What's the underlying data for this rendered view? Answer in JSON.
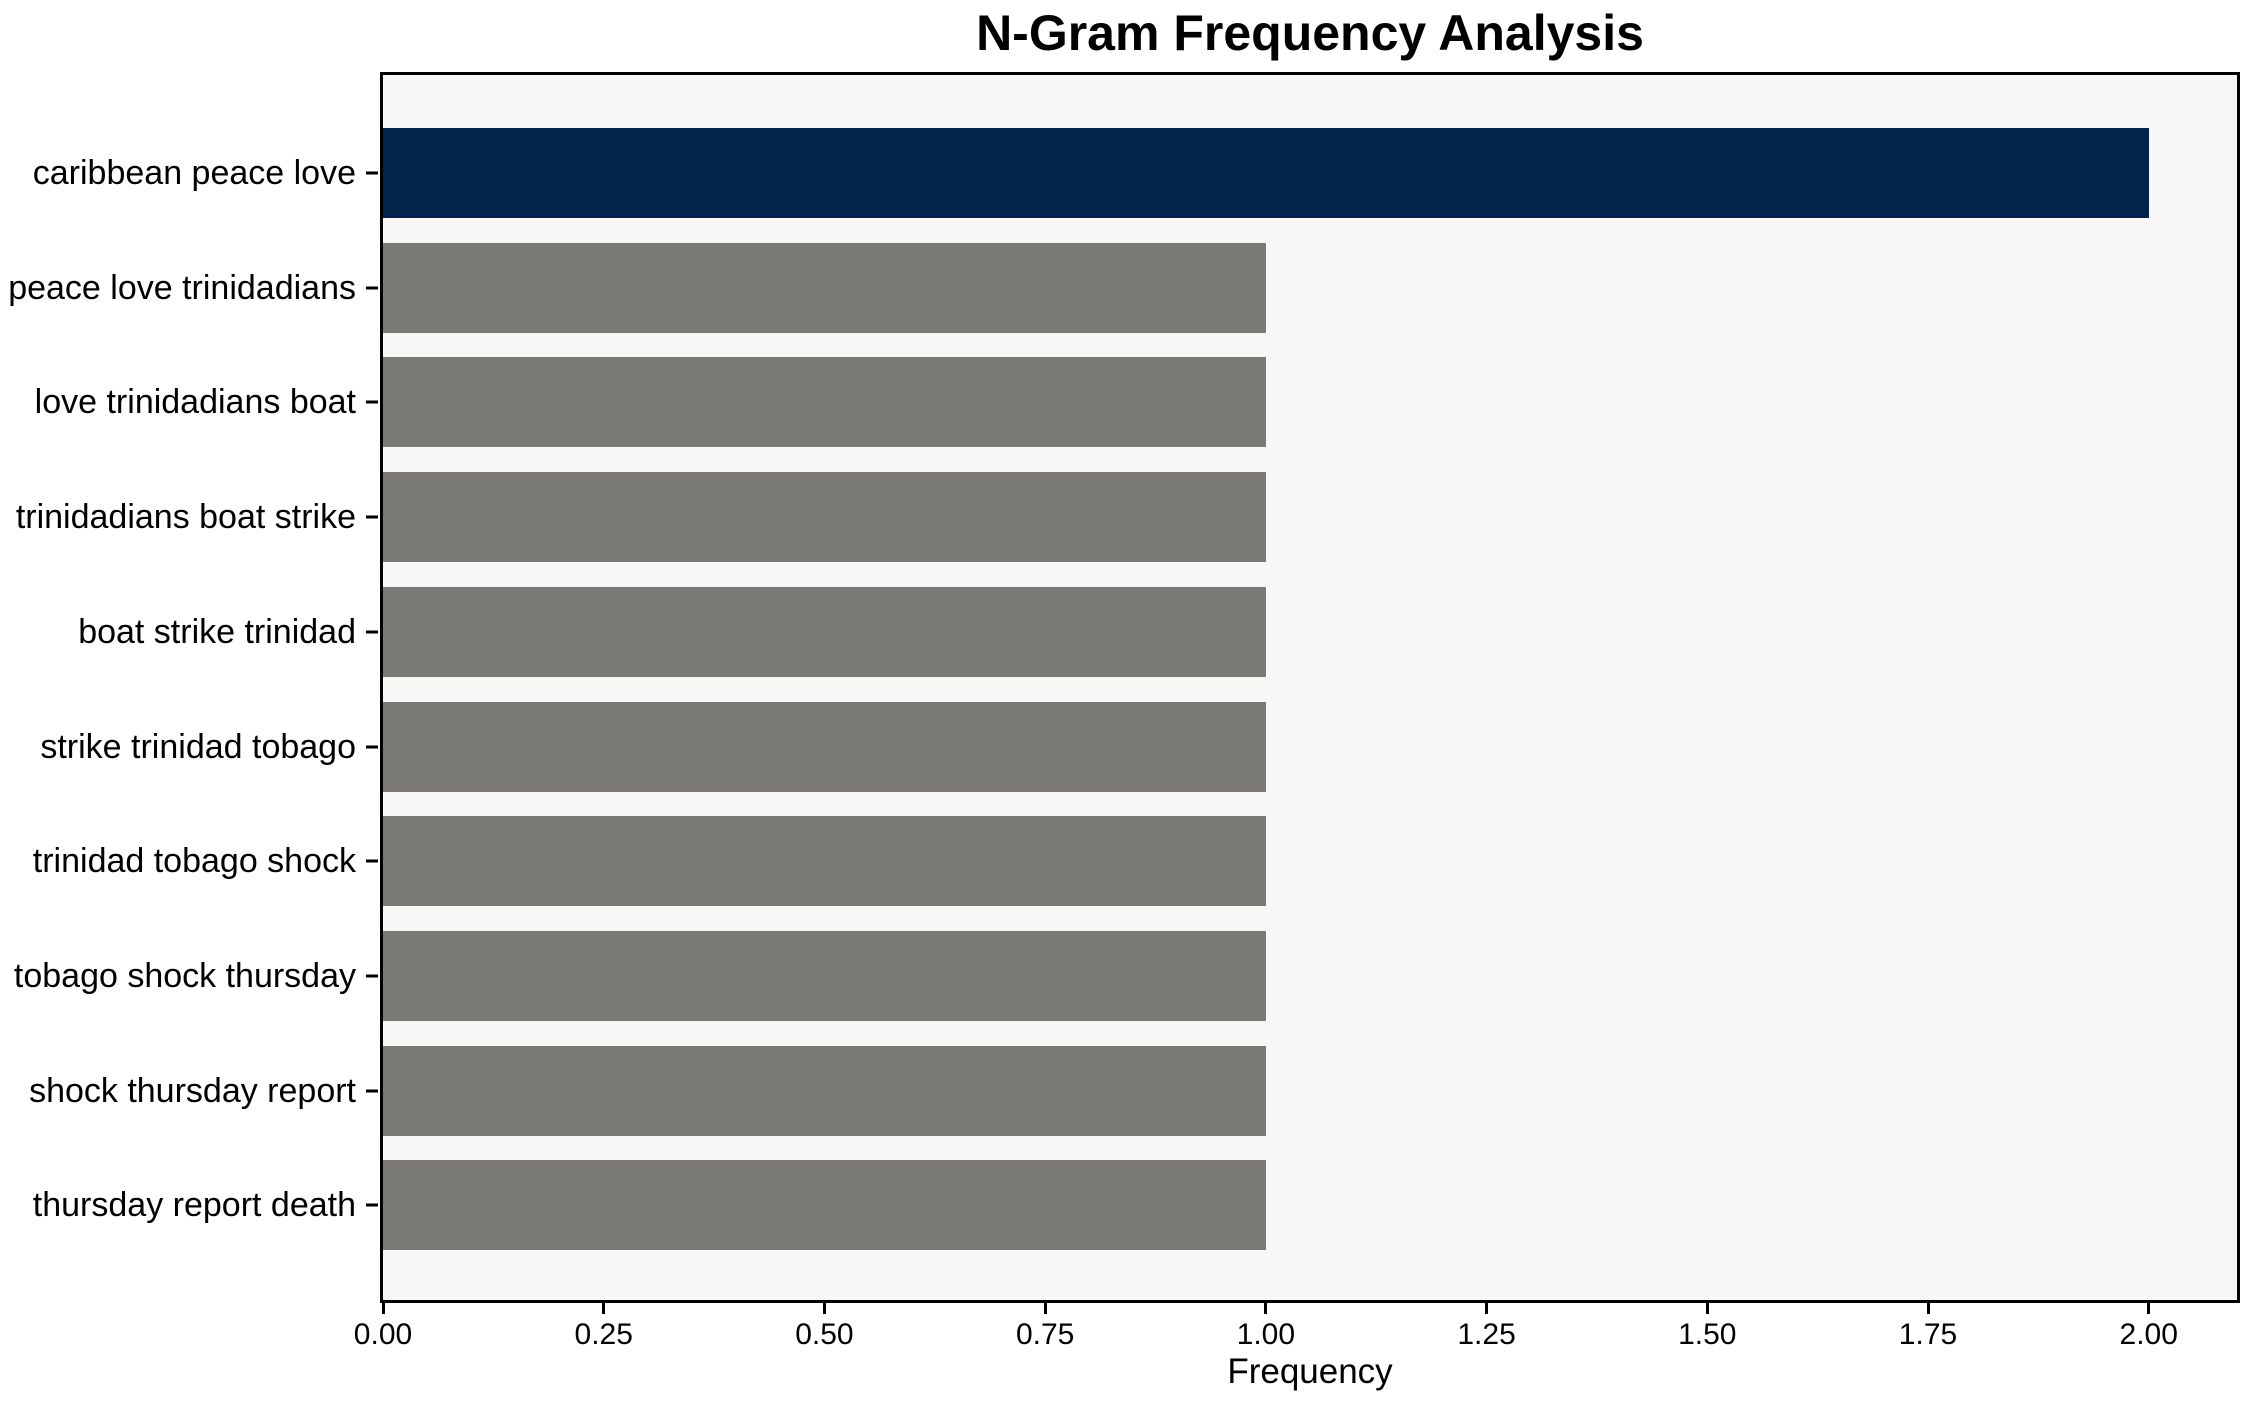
{
  "chart_data": {
    "type": "bar",
    "orientation": "horizontal",
    "title": "N-Gram Frequency Analysis",
    "xlabel": "Frequency",
    "ylabel": "",
    "categories": [
      "caribbean peace love",
      "peace love trinidadians",
      "love trinidadians boat",
      "trinidadians boat strike",
      "boat strike trinidad",
      "strike trinidad tobago",
      "trinidad tobago shock",
      "tobago shock thursday",
      "shock thursday report",
      "thursday report death"
    ],
    "values": [
      2,
      1,
      1,
      1,
      1,
      1,
      1,
      1,
      1,
      1
    ],
    "xlim": [
      0,
      2.1
    ],
    "xticks": [
      {
        "value": 0.0,
        "label": "0.00"
      },
      {
        "value": 0.25,
        "label": "0.25"
      },
      {
        "value": 0.5,
        "label": "0.50"
      },
      {
        "value": 0.75,
        "label": "0.75"
      },
      {
        "value": 1.0,
        "label": "1.00"
      },
      {
        "value": 1.25,
        "label": "1.25"
      },
      {
        "value": 1.5,
        "label": "1.50"
      },
      {
        "value": 1.75,
        "label": "1.75"
      },
      {
        "value": 2.0,
        "label": "2.00"
      }
    ],
    "grid": false,
    "legend": null,
    "highlight_index": 0,
    "colors": {
      "highlight_bar": "#02234c",
      "default_bar": "#7b7a77",
      "plot_background": "#f7f7f6",
      "figure_background": "#ffffff",
      "spine": "#000000",
      "text": "#000000"
    }
  }
}
